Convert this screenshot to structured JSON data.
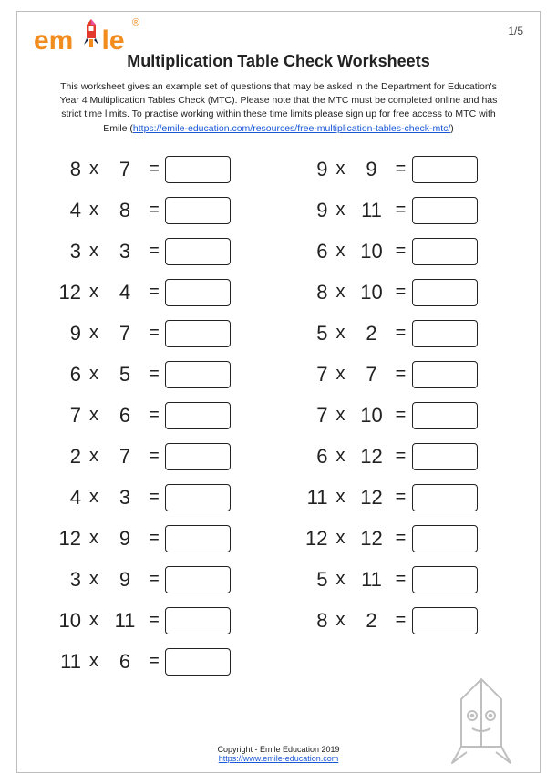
{
  "brand": {
    "name": "emile",
    "colors": {
      "orange": "#f28c1e",
      "red": "#e23b2e",
      "navy": "#1b2a4a",
      "pink": "#e84f9e"
    }
  },
  "page_number": "1/5",
  "title": "Multiplication Table Check Worksheets",
  "intro_1": "This worksheet gives an example set of questions that may be asked in the Department for Education's Year 4 Multiplication Tables Check (MTC). Please note that the MTC must be completed online and has strict time limits. To practise working within these time limits please sign up for free access to MTC with Emile (",
  "intro_link": "https://emile-education.com/resources/free-multiplication-tables-check-mtc/",
  "intro_2": ")",
  "operators": {
    "times": "x",
    "equals": "="
  },
  "left_column": [
    {
      "a": 8,
      "b": 7
    },
    {
      "a": 4,
      "b": 8
    },
    {
      "a": 3,
      "b": 3
    },
    {
      "a": 12,
      "b": 4
    },
    {
      "a": 9,
      "b": 7
    },
    {
      "a": 6,
      "b": 5
    },
    {
      "a": 7,
      "b": 6
    },
    {
      "a": 2,
      "b": 7
    },
    {
      "a": 4,
      "b": 3
    },
    {
      "a": 12,
      "b": 9
    },
    {
      "a": 3,
      "b": 9
    },
    {
      "a": 10,
      "b": 11
    },
    {
      "a": 11,
      "b": 6
    }
  ],
  "right_column": [
    {
      "a": 9,
      "b": 9
    },
    {
      "a": 9,
      "b": 11
    },
    {
      "a": 6,
      "b": 10
    },
    {
      "a": 8,
      "b": 10
    },
    {
      "a": 5,
      "b": 2
    },
    {
      "a": 7,
      "b": 7
    },
    {
      "a": 7,
      "b": 10
    },
    {
      "a": 6,
      "b": 12
    },
    {
      "a": 11,
      "b": 12
    },
    {
      "a": 12,
      "b": 12
    },
    {
      "a": 5,
      "b": 11
    },
    {
      "a": 8,
      "b": 2
    }
  ],
  "copyright": "Copyright - Emile Education 2019",
  "footer_link": "https://www.emile-education.com"
}
